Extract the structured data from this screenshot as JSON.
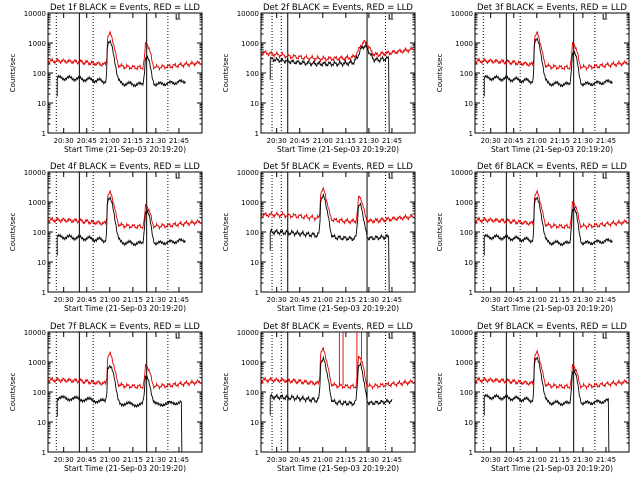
{
  "chart_data": [
    {
      "type": "line",
      "title": "Det 1f BLACK = Events, RED = LLD",
      "xlabel": "Start Time (21-Sep-03 20:19:20)",
      "ylabel": "Counts/sec",
      "ylog": true,
      "ylim": [
        1,
        10000
      ],
      "yticks": [
        "1",
        "10",
        "100",
        "1000",
        "10000"
      ],
      "xlim": [
        20.33,
        22.0
      ],
      "xticks": [
        {
          "t": 20.5,
          "label": "20:30"
        },
        {
          "t": 20.75,
          "label": "20:45"
        },
        {
          "t": 21.0,
          "label": "21:00"
        },
        {
          "t": 21.25,
          "label": "21:15"
        },
        {
          "t": 21.5,
          "label": "21:30"
        },
        {
          "t": 21.75,
          "label": "21:45"
        }
      ],
      "solid_markers": [
        20.67,
        21.4
      ],
      "dotted_markers": [
        20.42,
        20.82,
        21.63
      ],
      "series": [
        {
          "name": "Events",
          "color": "#000000",
          "start": 20.43,
          "end": 21.82,
          "base": 55,
          "p1": 1000,
          "p2": 350,
          "drop": null,
          "spikes": []
        },
        {
          "name": "LLD",
          "color": "#e00000",
          "start": 20.33,
          "end": 21.98,
          "base": 200,
          "p1": 2000,
          "p2": 1000,
          "drop": null,
          "spikes": []
        }
      ]
    },
    {
      "type": "line",
      "title": "Det 2f BLACK = Events, RED = LLD",
      "xlabel": "Start Time (21-Sep-03 20:19:20)",
      "ylabel": "Counts/sec",
      "ylog": true,
      "ylim": [
        1,
        10000
      ],
      "yticks": [
        "1",
        "10",
        "100",
        "1000",
        "10000"
      ],
      "xlim": [
        20.33,
        22.0
      ],
      "xticks": [
        {
          "t": 20.5,
          "label": "20:30"
        },
        {
          "t": 20.75,
          "label": "20:45"
        },
        {
          "t": 21.0,
          "label": "21:00"
        },
        {
          "t": 21.25,
          "label": "21:15"
        },
        {
          "t": 21.5,
          "label": "21:30"
        },
        {
          "t": 21.75,
          "label": "21:45"
        }
      ],
      "solid_markers": [
        20.62,
        21.48
      ],
      "dotted_markers": [
        20.45,
        20.55,
        21.68
      ],
      "series": [
        {
          "name": "Events",
          "color": "#000000",
          "start": 20.43,
          "end": 21.75,
          "base": 200,
          "p1": 0,
          "p2": 750,
          "drop": 21.72,
          "spikes": []
        },
        {
          "name": "LLD",
          "color": "#e00000",
          "start": 20.33,
          "end": 21.98,
          "base": 300,
          "p1": 0,
          "p2": 1000,
          "drop": null,
          "spikes": []
        }
      ]
    },
    {
      "type": "line",
      "title": "Det 3f BLACK = Events, RED = LLD",
      "xlabel": "Start Time (21-Sep-03 20:19:20)",
      "ylabel": "Counts/sec",
      "ylog": true,
      "ylim": [
        1,
        10000
      ],
      "yticks": [
        "1",
        "10",
        "100",
        "1000",
        "10000"
      ],
      "xlim": [
        20.33,
        22.0
      ],
      "xticks": [
        {
          "t": 20.5,
          "label": "20:30"
        },
        {
          "t": 20.75,
          "label": "20:45"
        },
        {
          "t": 21.0,
          "label": "21:00"
        },
        {
          "t": 21.25,
          "label": "21:15"
        },
        {
          "t": 21.5,
          "label": "21:30"
        },
        {
          "t": 21.75,
          "label": "21:45"
        }
      ],
      "solid_markers": [
        20.67,
        21.4
      ],
      "dotted_markers": [
        20.42,
        20.82,
        21.63
      ],
      "series": [
        {
          "name": "Events",
          "color": "#000000",
          "start": 20.43,
          "end": 21.82,
          "base": 55,
          "p1": 1200,
          "p2": 500,
          "drop": null,
          "spikes": []
        },
        {
          "name": "LLD",
          "color": "#e00000",
          "start": 20.33,
          "end": 21.98,
          "base": 200,
          "p1": 2000,
          "p2": 1000,
          "drop": null,
          "spikes": []
        }
      ]
    },
    {
      "type": "line",
      "title": "Det 4f BLACK = Events, RED = LLD",
      "xlabel": "Start Time (21-Sep-03 20:19:20)",
      "ylabel": "Counts/sec",
      "ylog": true,
      "ylim": [
        1,
        10000
      ],
      "yticks": [
        "1",
        "10",
        "100",
        "1000",
        "10000"
      ],
      "xlim": [
        20.33,
        22.0
      ],
      "xticks": [
        {
          "t": 20.5,
          "label": "20:30"
        },
        {
          "t": 20.75,
          "label": "20:45"
        },
        {
          "t": 21.0,
          "label": "21:00"
        },
        {
          "t": 21.25,
          "label": "21:15"
        },
        {
          "t": 21.5,
          "label": "21:30"
        },
        {
          "t": 21.75,
          "label": "21:45"
        }
      ],
      "solid_markers": [
        20.67,
        21.4
      ],
      "dotted_markers": [
        20.42,
        20.82,
        21.63
      ],
      "series": [
        {
          "name": "Events",
          "color": "#000000",
          "start": 20.43,
          "end": 21.82,
          "base": 55,
          "p1": 1200,
          "p2": 500,
          "drop": null,
          "spikes": []
        },
        {
          "name": "LLD",
          "color": "#e00000",
          "start": 20.33,
          "end": 21.98,
          "base": 200,
          "p1": 2000,
          "p2": 800,
          "drop": null,
          "spikes": []
        }
      ]
    },
    {
      "type": "line",
      "title": "Det 5f BLACK = Events, RED = LLD",
      "xlabel": "Start Time (21-Sep-03 20:19:20)",
      "ylabel": "Counts/sec",
      "ylog": true,
      "ylim": [
        1,
        10000
      ],
      "yticks": [
        "1",
        "10",
        "100",
        "1000",
        "10000"
      ],
      "xlim": [
        20.33,
        22.0
      ],
      "xticks": [
        {
          "t": 20.5,
          "label": "20:30"
        },
        {
          "t": 20.75,
          "label": "20:45"
        },
        {
          "t": 21.0,
          "label": "21:00"
        },
        {
          "t": 21.25,
          "label": "21:15"
        },
        {
          "t": 21.5,
          "label": "21:30"
        },
        {
          "t": 21.75,
          "label": "21:45"
        }
      ],
      "solid_markers": [
        20.62,
        21.48
      ],
      "dotted_markers": [
        20.45,
        20.55,
        21.68
      ],
      "series": [
        {
          "name": "Events",
          "color": "#000000",
          "start": 20.43,
          "end": 21.75,
          "base": 80,
          "p1": 1500,
          "p2": 800,
          "drop": 21.72,
          "spikes": []
        },
        {
          "name": "LLD",
          "color": "#e00000",
          "start": 20.33,
          "end": 21.98,
          "base": 300,
          "p1": 2500,
          "p2": 1500,
          "drop": null,
          "spikes": []
        }
      ]
    },
    {
      "type": "line",
      "title": "Det 6f BLACK = Events, RED = LLD",
      "xlabel": "Start Time (21-Sep-03 20:19:20)",
      "ylabel": "Counts/sec",
      "ylog": true,
      "ylim": [
        1,
        10000
      ],
      "yticks": [
        "1",
        "10",
        "100",
        "1000",
        "10000"
      ],
      "xlim": [
        20.33,
        22.0
      ],
      "xticks": [
        {
          "t": 20.5,
          "label": "20:30"
        },
        {
          "t": 20.75,
          "label": "20:45"
        },
        {
          "t": 21.0,
          "label": "21:00"
        },
        {
          "t": 21.25,
          "label": "21:15"
        },
        {
          "t": 21.5,
          "label": "21:30"
        },
        {
          "t": 21.75,
          "label": "21:45"
        }
      ],
      "solid_markers": [
        20.67,
        21.4
      ],
      "dotted_markers": [
        20.42,
        20.82,
        21.63
      ],
      "series": [
        {
          "name": "Events",
          "color": "#000000",
          "start": 20.43,
          "end": 21.82,
          "base": 55,
          "p1": 1200,
          "p2": 600,
          "drop": null,
          "spikes": []
        },
        {
          "name": "LLD",
          "color": "#e00000",
          "start": 20.33,
          "end": 21.98,
          "base": 200,
          "p1": 2000,
          "p2": 1000,
          "drop": null,
          "spikes": []
        }
      ]
    },
    {
      "type": "line",
      "title": "Det 7f BLACK = Events, RED = LLD",
      "xlabel": "Start Time (21-Sep-03 20:19:20)",
      "ylabel": "Counts/sec",
      "ylog": true,
      "ylim": [
        1,
        10000
      ],
      "yticks": [
        "1",
        "10",
        "100",
        "1000",
        "10000"
      ],
      "xlim": [
        20.33,
        22.0
      ],
      "xticks": [
        {
          "t": 20.5,
          "label": "20:30"
        },
        {
          "t": 20.75,
          "label": "20:45"
        },
        {
          "t": 21.0,
          "label": "21:00"
        },
        {
          "t": 21.25,
          "label": "21:15"
        },
        {
          "t": 21.5,
          "label": "21:30"
        },
        {
          "t": 21.75,
          "label": "21:45"
        }
      ],
      "solid_markers": [
        20.67,
        21.4
      ],
      "dotted_markers": [
        20.42,
        20.82,
        21.63
      ],
      "series": [
        {
          "name": "Events",
          "color": "#000000",
          "start": 20.43,
          "end": 21.84,
          "base": 50,
          "p1": 800,
          "p2": 350,
          "drop": 21.78,
          "spikes": []
        },
        {
          "name": "LLD",
          "color": "#e00000",
          "start": 20.33,
          "end": 21.98,
          "base": 200,
          "p1": 1800,
          "p2": 800,
          "drop": null,
          "spikes": []
        }
      ]
    },
    {
      "type": "line",
      "title": "Det 8f BLACK = Events, RED = LLD",
      "xlabel": "Start Time (21-Sep-03 20:19:20)",
      "ylabel": "Counts/sec",
      "ylog": true,
      "ylim": [
        1,
        10000
      ],
      "yticks": [
        "1",
        "10",
        "100",
        "1000",
        "10000"
      ],
      "xlim": [
        20.33,
        22.0
      ],
      "xticks": [
        {
          "t": 20.5,
          "label": "20:30"
        },
        {
          "t": 20.75,
          "label": "20:45"
        },
        {
          "t": 21.0,
          "label": "21:00"
        },
        {
          "t": 21.25,
          "label": "21:15"
        },
        {
          "t": 21.5,
          "label": "21:30"
        },
        {
          "t": 21.75,
          "label": "21:45"
        }
      ],
      "solid_markers": [
        20.62,
        21.48
      ],
      "dotted_markers": [
        20.45,
        20.55,
        21.68
      ],
      "series": [
        {
          "name": "Events",
          "color": "#000000",
          "start": 20.43,
          "end": 21.75,
          "base": 55,
          "p1": 1200,
          "p2": 800,
          "drop": null,
          "spikes": []
        },
        {
          "name": "LLD",
          "color": "#e00000",
          "start": 20.33,
          "end": 21.98,
          "base": 200,
          "p1": 2500,
          "p2": 1500,
          "drop": null,
          "spikes": [
            21.18,
            21.22,
            21.37,
            21.42
          ]
        }
      ]
    },
    {
      "type": "line",
      "title": "Det 9f BLACK = Events, RED = LLD",
      "xlabel": "Start Time (21-Sep-03 20:19:20)",
      "ylabel": "Counts/sec",
      "ylog": true,
      "ylim": [
        1,
        10000
      ],
      "yticks": [
        "1",
        "10",
        "100",
        "1000",
        "10000"
      ],
      "xlim": [
        20.33,
        22.0
      ],
      "xticks": [
        {
          "t": 20.5,
          "label": "20:30"
        },
        {
          "t": 20.75,
          "label": "20:45"
        },
        {
          "t": 21.0,
          "label": "21:00"
        },
        {
          "t": 21.25,
          "label": "21:15"
        },
        {
          "t": 21.5,
          "label": "21:30"
        },
        {
          "t": 21.75,
          "label": "21:45"
        }
      ],
      "solid_markers": [
        20.67,
        21.4
      ],
      "dotted_markers": [
        20.42,
        20.82,
        21.63
      ],
      "series": [
        {
          "name": "Events",
          "color": "#000000",
          "start": 20.43,
          "end": 21.82,
          "base": 55,
          "p1": 1200,
          "p2": 500,
          "drop": 21.78,
          "spikes": []
        },
        {
          "name": "LLD",
          "color": "#e00000",
          "start": 20.33,
          "end": 21.98,
          "base": 200,
          "p1": 2000,
          "p2": 800,
          "drop": null,
          "spikes": []
        }
      ]
    }
  ]
}
